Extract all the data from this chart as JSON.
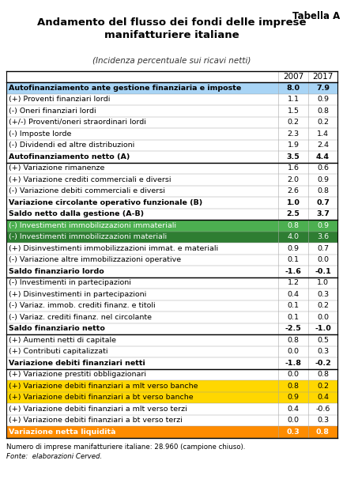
{
  "tabella_label": "Tabella A",
  "title": "Andamento del flusso dei fondi delle imprese\nmanifatturiere italiane",
  "subtitle": "(Incidenza percentuale sui ricavi netti)",
  "col_headers": [
    "2007",
    "2017"
  ],
  "rows": [
    {
      "label": "Autofinanziamento ante gestione finanziaria e imposte",
      "vals": [
        8.0,
        7.9
      ],
      "bold": true,
      "bg": "#a8d4f5"
    },
    {
      "label": "(+) Proventi finanziari lordi",
      "vals": [
        1.1,
        0.9
      ],
      "bold": false,
      "bg": null
    },
    {
      "label": "(-) Oneri finanziari lordi",
      "vals": [
        1.5,
        0.8
      ],
      "bold": false,
      "bg": null
    },
    {
      "label": "(+/-) Proventi/oneri straordinari lordi",
      "vals": [
        0.2,
        0.2
      ],
      "bold": false,
      "bg": null
    },
    {
      "label": "(-) Imposte lorde",
      "vals": [
        2.3,
        1.4
      ],
      "bold": false,
      "bg": null
    },
    {
      "label": "(-) Dividendi ed altre distribuzioni",
      "vals": [
        1.9,
        2.4
      ],
      "bold": false,
      "bg": null
    },
    {
      "label": "Autofinanziamento netto (A)",
      "vals": [
        3.5,
        4.4
      ],
      "bold": true,
      "bg": null
    },
    {
      "label": "(+) Variazione rimanenze",
      "vals": [
        1.6,
        0.6
      ],
      "bold": false,
      "bg": null
    },
    {
      "label": "(+) Variazione crediti commerciali e diversi",
      "vals": [
        2.0,
        0.9
      ],
      "bold": false,
      "bg": null
    },
    {
      "label": "(-) Variazione debiti commerciali e diversi",
      "vals": [
        2.6,
        0.8
      ],
      "bold": false,
      "bg": null
    },
    {
      "label": "Variazione circolante operativo funzionale (B)",
      "vals": [
        1.0,
        0.7
      ],
      "bold": true,
      "bg": null
    },
    {
      "label": "Saldo netto dalla gestione (A-B)",
      "vals": [
        2.5,
        3.7
      ],
      "bold": true,
      "bg": null
    },
    {
      "label": "(-) Investimenti immobilizzazioni immateriali",
      "vals": [
        0.8,
        0.9
      ],
      "bold": false,
      "bg": "#4caf50"
    },
    {
      "label": "(-) Investimenti immobilizzazioni materiali",
      "vals": [
        4.0,
        3.6
      ],
      "bold": false,
      "bg": "#2e7d32"
    },
    {
      "label": "(+) Disinvestimenti immobilizzazioni immat. e materiali",
      "vals": [
        0.9,
        0.7
      ],
      "bold": false,
      "bg": null
    },
    {
      "label": "(-) Variazione altre immobilizzazioni operative",
      "vals": [
        0.1,
        0.0
      ],
      "bold": false,
      "bg": null
    },
    {
      "label": "Saldo finanziario lordo",
      "vals": [
        -1.6,
        -0.1
      ],
      "bold": true,
      "bg": null
    },
    {
      "label": "(-) Investimenti in partecipazioni",
      "vals": [
        1.2,
        1.0
      ],
      "bold": false,
      "bg": null
    },
    {
      "label": "(+) Disinvestimenti in partecipazioni",
      "vals": [
        0.4,
        0.3
      ],
      "bold": false,
      "bg": null
    },
    {
      "label": "(-) Variaz. immob. crediti finanz. e titoli",
      "vals": [
        0.1,
        0.2
      ],
      "bold": false,
      "bg": null
    },
    {
      "label": "(-) Variaz. crediti finanz. nel circolante",
      "vals": [
        0.1,
        0.0
      ],
      "bold": false,
      "bg": null
    },
    {
      "label": "Saldo finanziario netto",
      "vals": [
        -2.5,
        -1.0
      ],
      "bold": true,
      "bg": null
    },
    {
      "label": "(+) Aumenti netti di capitale",
      "vals": [
        0.8,
        0.5
      ],
      "bold": false,
      "bg": null
    },
    {
      "label": "(+) Contributi capitalizzati",
      "vals": [
        0.0,
        0.3
      ],
      "bold": false,
      "bg": null
    },
    {
      "label": "Variazione debiti finanziari netti",
      "vals": [
        -1.8,
        -0.2
      ],
      "bold": true,
      "bg": null
    },
    {
      "label": "(+) Variazione prestiti obbligazionari",
      "vals": [
        0.0,
        0.8
      ],
      "bold": false,
      "bg": null
    },
    {
      "label": "(+) Variazione debiti finanziari a mlt verso banche",
      "vals": [
        0.8,
        0.2
      ],
      "bold": false,
      "bg": "#ffd700"
    },
    {
      "label": "(+) Variazione debiti finanziari a bt verso banche",
      "vals": [
        0.9,
        0.4
      ],
      "bold": false,
      "bg": "#ffd700"
    },
    {
      "label": "(+) Variazione debiti finanziari a mlt verso terzi",
      "vals": [
        0.4,
        -0.6
      ],
      "bold": false,
      "bg": null
    },
    {
      "label": "(+) Variazione debiti finanziari a bt verso terzi",
      "vals": [
        0.0,
        0.3
      ],
      "bold": false,
      "bg": null
    },
    {
      "label": "Variazione netta liquidità",
      "vals": [
        0.3,
        0.8
      ],
      "bold": true,
      "bg": "#ff8c00"
    }
  ],
  "footer1": "Numero di imprese manifatturiere italiane: 28.960 (campione chiuso).",
  "footer2": "Fonte:  elaborazioni Cerved.",
  "thick_top_rows": [
    0,
    7,
    12,
    17,
    22,
    25,
    31
  ],
  "green_text_rows": [
    12,
    13
  ],
  "yellow_text_rows": [
    26,
    27
  ],
  "orange_text_row": 30
}
